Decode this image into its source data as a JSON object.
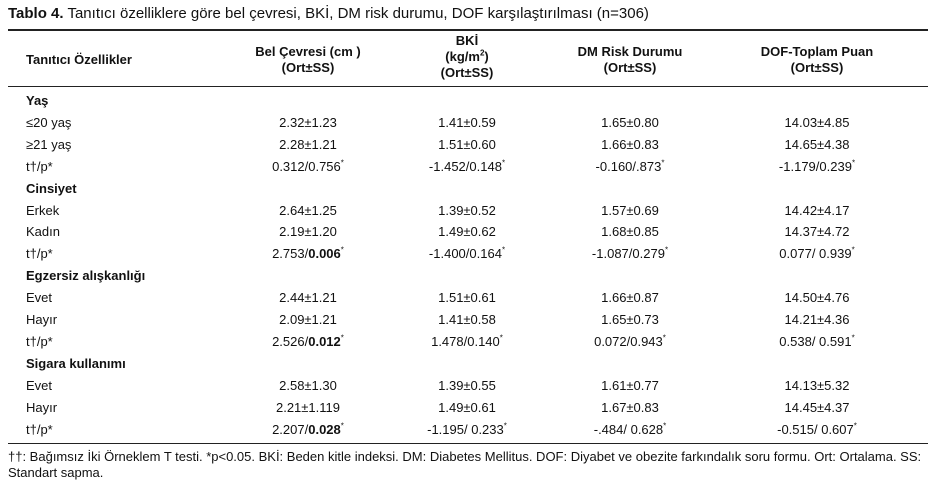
{
  "caption": {
    "label": "Tablo 4.",
    "text": "Tanıtıcı özelliklere göre bel çevresi, BKİ, DM risk durumu, DOF karşılaştırılması (n=306)"
  },
  "headers": {
    "col0": "Tanıtıcı Özellikler",
    "col1_l1": "Bel Çevresi (cm )",
    "col1_l2": "(Ort±SS)",
    "col2_l1": "BKİ",
    "col2_l2a": "(kg/m",
    "col2_l2sup": "2",
    "col2_l2b": ")",
    "col2_l3": "(Ort±SS)",
    "col3_l1": "DM Risk Durumu",
    "col3_l2": "(Ort±SS)",
    "col4_l1": "DOF-Toplam Puan",
    "col4_l2": "(Ort±SS)"
  },
  "groups": [
    {
      "title": "Yaş",
      "rows": [
        {
          "label": "≤20 yaş",
          "v1": "2.32±1.23",
          "v2": "1.41±0.59",
          "v3": "1.65±0.80",
          "v4": "14.03±4.85"
        },
        {
          "label": "≥21 yaş",
          "v1": "2.28±1.21",
          "v2": "1.51±0.60",
          "v3": "1.66±0.83",
          "v4": "14.65±4.38"
        }
      ],
      "test": {
        "label": "t†/p*",
        "v1a": "0.312/0.756",
        "v1b": "",
        "v2": "-1.452/0.148",
        "v3": "-0.160/.873",
        "v4": "-1.179/0.239"
      }
    },
    {
      "title": "Cinsiyet",
      "rows": [
        {
          "label": "Erkek",
          "v1": "2.64±1.25",
          "v2": "1.39±0.52",
          "v3": "1.57±0.69",
          "v4": "14.42±4.17"
        },
        {
          "label": "Kadın",
          "v1": "2.19±1.20",
          "v2": "1.49±0.62",
          "v3": "1.68±0.85",
          "v4": "14.37±4.72"
        }
      ],
      "test": {
        "label": "t†/p*",
        "v1a": "2.753/",
        "v1b": "0.006",
        "v2": "-1.400/0.164",
        "v3": "-1.087/0.279",
        "v4": "0.077/ 0.939"
      }
    },
    {
      "title": "Egzersiz alışkanlığı",
      "rows": [
        {
          "label": "Evet",
          "v1": "2.44±1.21",
          "v2": "1.51±0.61",
          "v3": "1.66±0.87",
          "v4": "14.50±4.76"
        },
        {
          "label": "Hayır",
          "v1": "2.09±1.21",
          "v2": "1.41±0.58",
          "v3": "1.65±0.73",
          "v4": "14.21±4.36"
        }
      ],
      "test": {
        "label": "t†/p*",
        "v1a": "2.526/",
        "v1b": "0.012",
        "v2": "1.478/0.140",
        "v3": "0.072/0.943",
        "v4": "0.538/ 0.591"
      }
    },
    {
      "title": "Sigara kullanımı",
      "rows": [
        {
          "label": "Evet",
          "v1": "2.58±1.30",
          "v2": "1.39±0.55",
          "v3": "1.61±0.77",
          "v4": "14.13±5.32"
        },
        {
          "label": "Hayır",
          "v1": "2.21±1.119",
          "v2": "1.49±0.61",
          "v3": "1.67±0.83",
          "v4": "14.45±4.37"
        }
      ],
      "test": {
        "label": "t†/p*",
        "v1a": "2.207/",
        "v1b": "0.028",
        "v2": "-1.195/ 0.233",
        "v3": "-.484/ 0.628",
        "v4": "-0.515/ 0.607"
      }
    }
  ],
  "footnote": "††: Bağımsız İki Örneklem T testi. *p<0.05. BKİ: Beden kitle indeksi. DM: Diabetes Mellitus. DOF: Diyabet ve obezite farkındalık soru formu. Ort: Ortalama. SS: Standart sapma."
}
